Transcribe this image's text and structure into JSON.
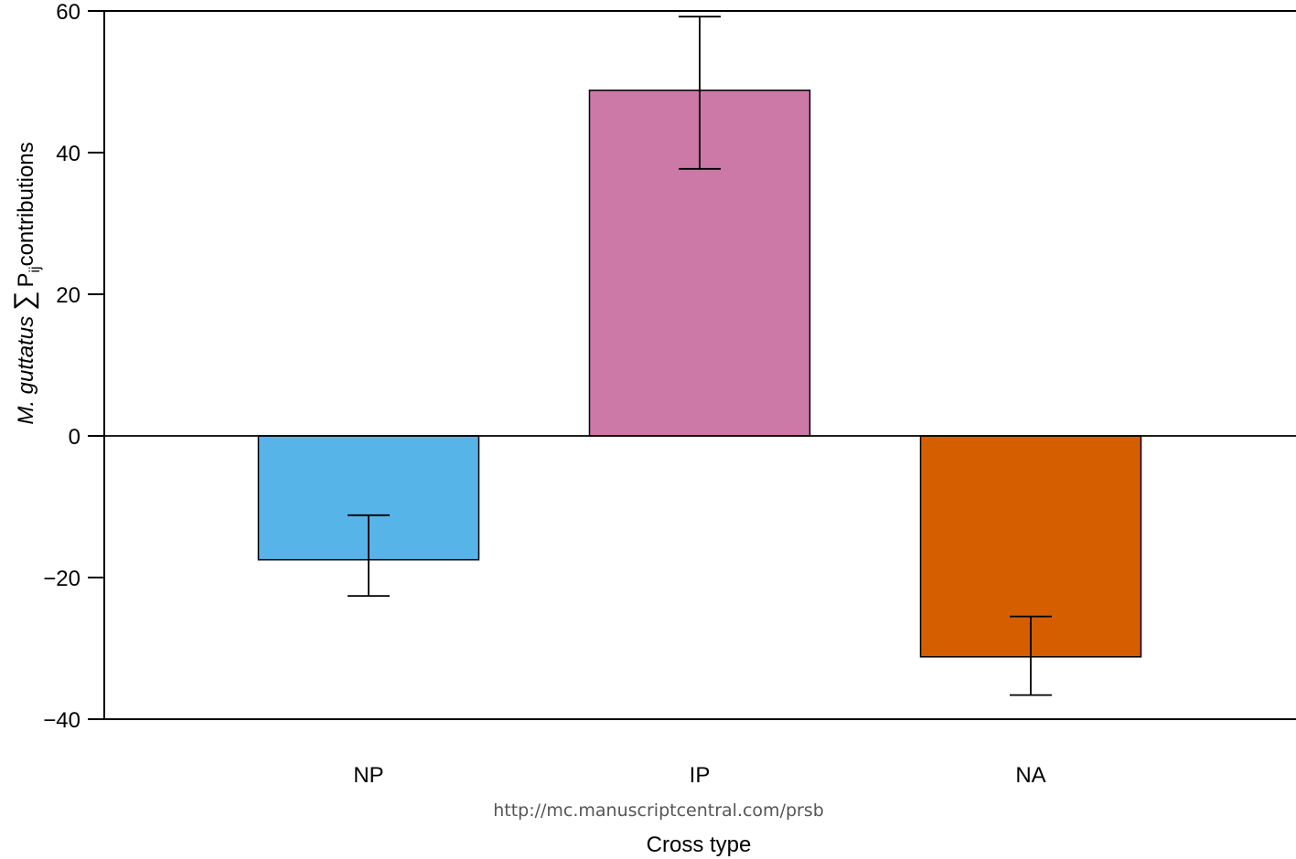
{
  "chart_data": {
    "type": "bar",
    "categories": [
      "NP",
      "IP",
      "NA"
    ],
    "values": [
      -17.5,
      48.8,
      -31.2
    ],
    "error_low": [
      -22.6,
      37.7,
      -36.6
    ],
    "error_high": [
      -11.2,
      59.2,
      -25.5
    ],
    "colors": [
      "#56B4E9",
      "#CC79A7",
      "#D55E00"
    ],
    "xlabel": "Cross type",
    "ylabel": {
      "species": "M. guttatus",
      "sum_symbol": "∑",
      "var": "P",
      "subscript": "ij",
      "suffix": "contributions"
    },
    "ylim": [
      -40,
      60
    ],
    "yticks": [
      -40,
      -20,
      0,
      20,
      40,
      60
    ],
    "ytick_labels": [
      "−40",
      "−20",
      "0",
      "20",
      "40",
      "60"
    ],
    "zero_line": true,
    "grid": false
  },
  "watermark": "http://mc.manuscriptcentral.com/prsb"
}
